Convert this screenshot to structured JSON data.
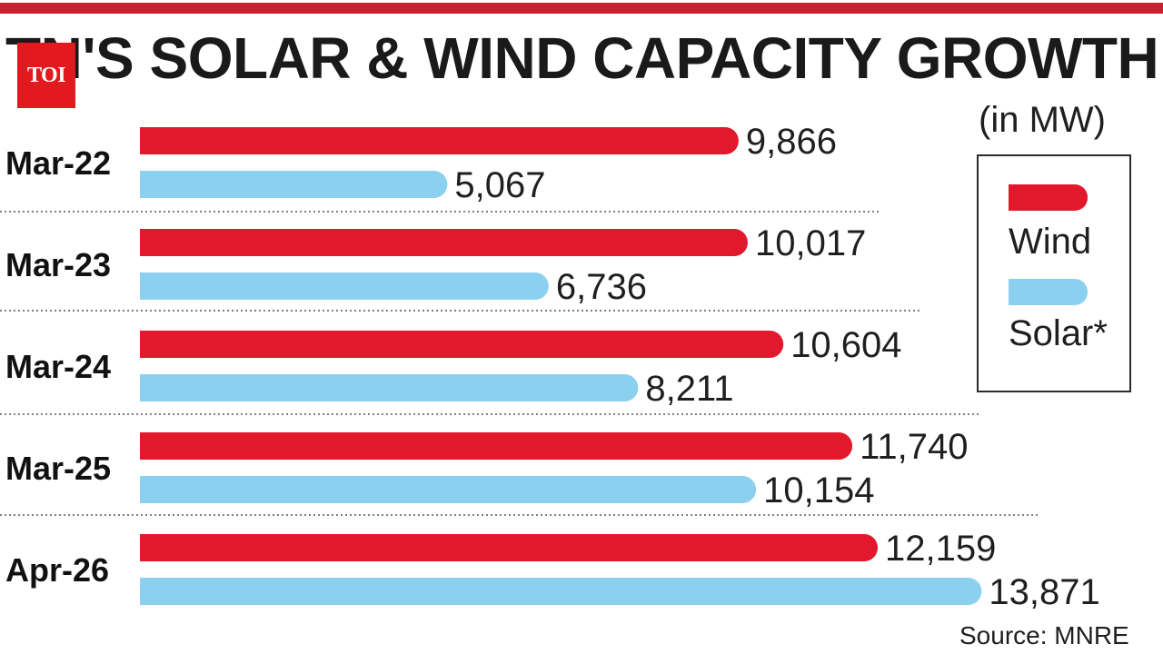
{
  "brand": {
    "logo_text": "TOI"
  },
  "colors": {
    "wind": "#e2192c",
    "solar": "#8bd1ef",
    "rule": "#c8202f"
  },
  "chart_data": {
    "type": "bar",
    "orientation": "horizontal",
    "title": "TN'S SOLAR & WIND CAPACITY GROWTH",
    "unit": "(in MW)",
    "categories": [
      "Mar-22",
      "Mar-23",
      "Mar-24",
      "Mar-25",
      "Apr-26"
    ],
    "series": [
      {
        "name": "Wind",
        "values": [
          9866,
          10017,
          10604,
          11740,
          12159
        ],
        "labels": [
          "9,866",
          "10,017",
          "10,604",
          "11,740",
          "12,159"
        ]
      },
      {
        "name": "Solar*",
        "values": [
          5067,
          6736,
          8211,
          10154,
          13871
        ],
        "labels": [
          "5,067",
          "6,736",
          "8,211",
          "10,154",
          "13,871"
        ]
      }
    ],
    "legend": "right",
    "grid": false,
    "source": "Source: MNRE"
  }
}
